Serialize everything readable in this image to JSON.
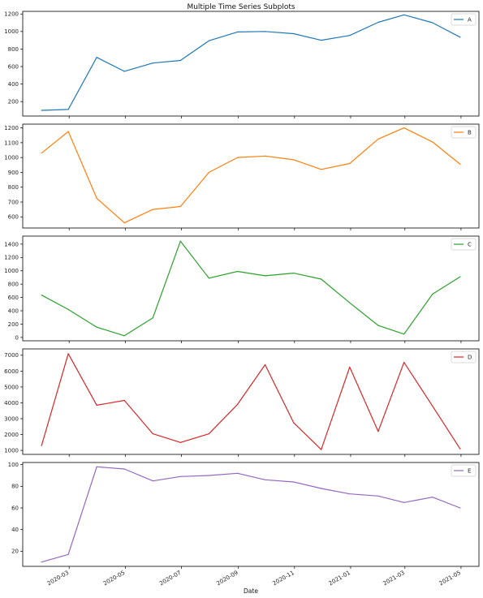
{
  "chart_data": {
    "type": "line",
    "title": "Multiple Time Series Subplots",
    "xlabel": "Date",
    "x": [
      "2020-01-31",
      "2020-02-29",
      "2020-03-31",
      "2020-04-30",
      "2020-05-31",
      "2020-06-30",
      "2020-07-31",
      "2020-08-31",
      "2020-09-30",
      "2020-10-31",
      "2020-11-30",
      "2020-12-31",
      "2021-01-31",
      "2021-02-28",
      "2021-03-31",
      "2021-04-30"
    ],
    "x_ticks": [
      "2020-03",
      "2020-05",
      "2020-07",
      "2020-09",
      "2020-11",
      "2021-01",
      "2021-03",
      "2021-05"
    ],
    "legend_position": "top-right",
    "series": [
      {
        "name": "A",
        "color": "#1f77b4",
        "ylim": [
          35,
          1230
        ],
        "yticks": [
          200,
          400,
          600,
          800,
          1000,
          1200
        ],
        "values": [
          100,
          110,
          705,
          545,
          640,
          670,
          895,
          995,
          1000,
          975,
          900,
          955,
          1105,
          1190,
          1100,
          935
        ]
      },
      {
        "name": "B",
        "color": "#ff7f0e",
        "ylim": [
          525,
          1225
        ],
        "yticks": [
          600,
          700,
          800,
          900,
          1000,
          1100,
          1200
        ],
        "values": [
          1030,
          1175,
          725,
          560,
          650,
          670,
          900,
          1000,
          1010,
          985,
          920,
          960,
          1125,
          1200,
          1105,
          955
        ]
      },
      {
        "name": "C",
        "color": "#2ca02c",
        "ylim": [
          -50,
          1520
        ],
        "yticks": [
          0,
          200,
          400,
          600,
          800,
          1000,
          1200,
          1400
        ],
        "values": [
          635,
          420,
          155,
          25,
          295,
          1445,
          890,
          990,
          925,
          965,
          875,
          520,
          180,
          50,
          650,
          910
        ]
      },
      {
        "name": "D",
        "color": "#d62728",
        "ylim": [
          750,
          7400
        ],
        "yticks": [
          1000,
          2000,
          3000,
          4000,
          5000,
          6000,
          7000
        ],
        "values": [
          1300,
          7100,
          3850,
          4150,
          2050,
          1500,
          2050,
          3900,
          6400,
          2750,
          1050,
          6250,
          2200,
          6550,
          3800,
          1100
        ]
      },
      {
        "name": "E",
        "color": "#9467bd",
        "ylim": [
          6,
          102
        ],
        "yticks": [
          20,
          40,
          60,
          80,
          100
        ],
        "values": [
          10,
          17,
          98,
          96,
          85,
          89,
          90,
          92,
          86,
          84,
          78,
          73,
          71,
          65,
          70,
          60
        ]
      }
    ]
  }
}
